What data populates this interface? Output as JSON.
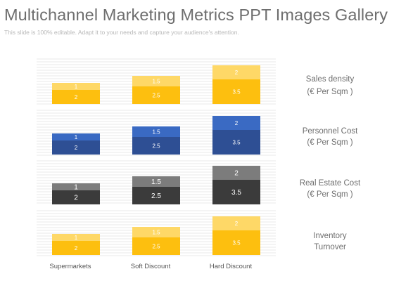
{
  "slide": {
    "title": "Multichannel Marketing Metrics PPT Images Gallery",
    "subtitle": "This slide is 100% editable. Adapt it to your needs and capture your audience's attention."
  },
  "colors": {
    "text_gray": "#6e6e6e",
    "stripe": "#e8e8e8"
  },
  "chart_data": {
    "type": "bar",
    "stacked": true,
    "categories": [
      "Supermarkets",
      "Soft Discount",
      "Hard Discount"
    ],
    "panels": [
      {
        "label": [
          "Sales density",
          "(€ Per Sqm )"
        ],
        "bottom_color": "#fdbf0f",
        "top_color": "#fed867",
        "bottom_text_color": "#ffffff",
        "top_text_color": "#ffffff",
        "bottom_values": [
          "2",
          "2.5",
          "3.5"
        ],
        "top_values": [
          "1",
          "1.5",
          "2"
        ]
      },
      {
        "label": [
          "Personnel Cost",
          "(€ Per Sqm )"
        ],
        "bottom_color": "#2e4f94",
        "top_color": "#3a6ac3",
        "bottom_text_color": "#ffffff",
        "top_text_color": "#ffffff",
        "bottom_values": [
          "2",
          "2.5",
          "3.5"
        ],
        "top_values": [
          "1",
          "1.5",
          "2"
        ]
      },
      {
        "label": [
          "Real Estate Cost",
          "(€ Per Sqm )"
        ],
        "bottom_color": "#3b3b3b",
        "top_color": "#7c7c7c",
        "bottom_text_color": "#ffffff",
        "top_text_color": "#ffffff",
        "bottom_values": [
          "2",
          "2.5",
          "3.5"
        ],
        "top_values": [
          "1",
          "1.5",
          "2"
        ]
      },
      {
        "label": [
          "Inventory",
          "Turnover"
        ],
        "bottom_color": "#fdbf0f",
        "top_color": "#fed867",
        "bottom_text_color": "#ffffff",
        "top_text_color": "#ffffff",
        "bottom_values": [
          "2",
          "2.5",
          "3.5"
        ],
        "top_values": [
          "1",
          "1.5",
          "2"
        ]
      }
    ],
    "grid": false,
    "legend": "none"
  }
}
